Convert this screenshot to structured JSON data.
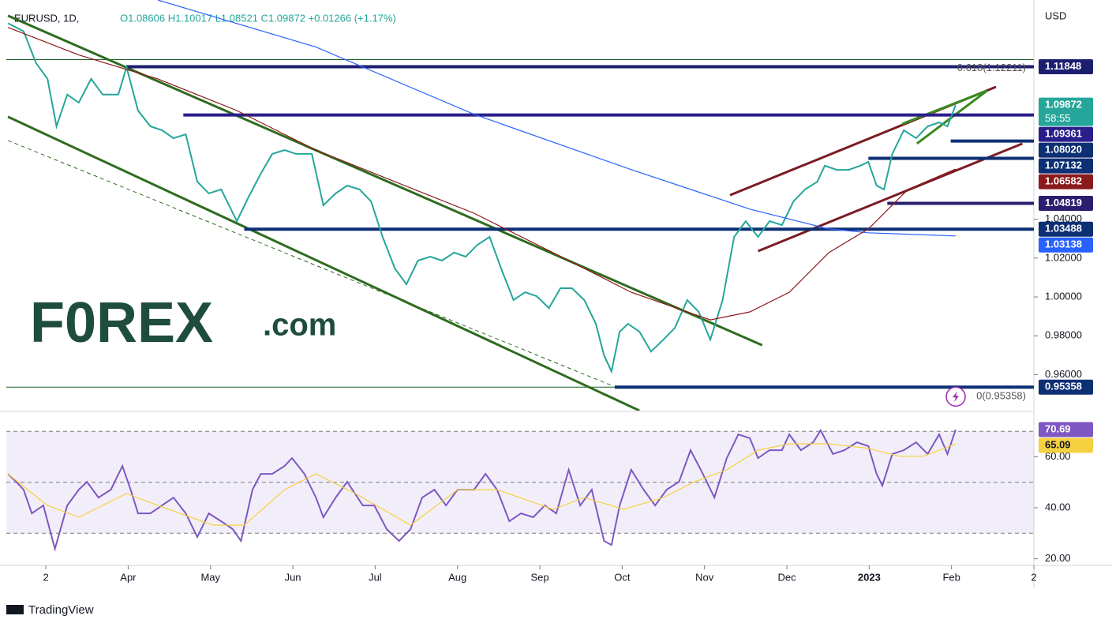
{
  "chart_data": [
    {
      "type": "line",
      "title": "EURUSD, 1D,",
      "subtitle": "O1.08606 H1.10017 L1.08521 C1.09872 +0.01266 (+1.17%)",
      "y_axis_label": "USD",
      "xlim": [
        -0.48,
        12
      ],
      "xticks": [
        {
          "value": 0,
          "label": "2"
        },
        {
          "value": 1,
          "label": "Apr"
        },
        {
          "value": 2,
          "label": "May"
        },
        {
          "value": 3,
          "label": "Jun"
        },
        {
          "value": 4,
          "label": "Jul"
        },
        {
          "value": 5,
          "label": "Aug"
        },
        {
          "value": 6,
          "label": "Sep"
        },
        {
          "value": 7,
          "label": "Oct"
        },
        {
          "value": 8,
          "label": "Nov"
        },
        {
          "value": 9,
          "label": "Dec"
        },
        {
          "value": 10,
          "label": "2023"
        },
        {
          "value": 11,
          "label": "Feb"
        },
        {
          "value": 12,
          "label": "2"
        }
      ],
      "ylim": [
        0.9415,
        1.1528
      ],
      "yticks": [
        {
          "value": 0.96,
          "label": "0.96000"
        },
        {
          "value": 0.98,
          "label": "0.98000"
        },
        {
          "value": 1.0,
          "label": "1.00000"
        },
        {
          "value": 1.02,
          "label": "1.02000"
        },
        {
          "value": 1.04,
          "label": "1.04000"
        }
      ],
      "series": [
        {
          "color": "#26a69a",
          "x": [
            -0.46,
            -0.27,
            -0.12,
            0.02,
            0.13,
            0.26,
            0.4,
            0.55,
            0.69,
            0.88,
            0.98,
            1.12,
            1.27,
            1.41,
            1.55,
            1.7,
            1.84,
            1.98,
            2.13,
            2.32,
            2.46,
            2.61,
            2.75,
            2.9,
            3.04,
            3.23,
            3.37,
            3.52,
            3.66,
            3.81,
            3.95,
            4.09,
            4.24,
            4.38,
            4.52,
            4.67,
            4.81,
            4.96,
            5.1,
            5.24,
            5.39,
            5.53,
            5.68,
            5.82,
            5.96,
            6.11,
            6.25,
            6.39,
            6.54,
            6.68,
            6.78,
            6.87,
            6.97,
            7.07,
            7.21,
            7.35,
            7.5,
            7.64,
            7.79,
            7.93,
            8.07,
            8.22,
            8.36,
            8.5,
            8.65,
            8.79,
            8.94,
            9.08,
            9.22,
            9.37,
            9.46,
            9.61,
            9.75,
            9.89,
            9.99,
            10.09,
            10.18,
            10.28,
            10.42,
            10.57,
            10.71,
            10.85,
            10.95,
            11.05
          ],
          "values": [
            1.1408,
            1.1367,
            1.1204,
            1.1122,
            1.0878,
            1.1041,
            1.1,
            1.1122,
            1.1041,
            1.1041,
            1.1183,
            1.0959,
            1.0878,
            1.0858,
            1.0817,
            1.0837,
            1.0593,
            1.0533,
            1.0553,
            1.039,
            1.0512,
            1.0634,
            1.0736,
            1.0756,
            1.0736,
            1.0736,
            1.0472,
            1.0533,
            1.0573,
            1.0553,
            1.0492,
            1.0309,
            1.0146,
            1.0065,
            1.0187,
            1.0207,
            1.0187,
            1.0228,
            1.0207,
            1.0268,
            1.0309,
            1.0146,
            0.9984,
            1.0024,
            1.0004,
            0.9943,
            1.0045,
            1.0045,
            0.9984,
            0.9862,
            0.9699,
            0.9617,
            0.9821,
            0.9862,
            0.9821,
            0.9719,
            0.978,
            0.9841,
            0.9984,
            0.9923,
            0.978,
            0.9984,
            1.0309,
            1.039,
            1.0309,
            1.039,
            1.037,
            1.0492,
            1.0553,
            1.0593,
            1.0675,
            1.0654,
            1.0654,
            1.0675,
            1.0695,
            1.0573,
            1.0553,
            1.0736,
            1.0858,
            1.0817,
            1.0878,
            1.0898,
            1.0878,
            1.09872
          ]
        },
        {
          "color": "#2962ff",
          "x": [
            1.36,
            3.28,
            5.2,
            7.11,
            8.55,
            9.51,
            9.99,
            11.05
          ],
          "values": [
            1.1528,
            1.1286,
            1.094,
            1.0655,
            1.0452,
            1.035,
            1.033,
            1.0314
          ]
        },
        {
          "color": "#8b1a1a",
          "x": [
            -0.46,
            0.4,
            1.36,
            2.32,
            3.28,
            4.24,
            5.2,
            6.16,
            7.11,
            8.07,
            8.55,
            9.03,
            9.51,
            9.99,
            10.47,
            11.05
          ],
          "values": [
            1.1387,
            1.1245,
            1.1122,
            1.0959,
            1.0756,
            1.0593,
            1.0431,
            1.0228,
            1.0024,
            0.9882,
            0.9923,
            1.0024,
            1.0228,
            1.035,
            1.0553,
            1.0658
          ]
        }
      ],
      "levels": [
        {
          "value": 1.11848,
          "start": 0.98,
          "color": "#1c1f6e",
          "label": "1.11848"
        },
        {
          "value": 1.09361,
          "start": 1.67,
          "color": "#2a1f8a",
          "label": "1.09361"
        },
        {
          "value": 1.0802,
          "start": 10.99,
          "color": "#0d2f73",
          "label": "1.08020"
        },
        {
          "value": 1.07132,
          "start": 9.99,
          "color": "#0d2f73",
          "label": "1.07132"
        },
        {
          "value": 1.04819,
          "start": 10.22,
          "color": "#2a1f6e",
          "label": "1.04819"
        },
        {
          "value": 1.03488,
          "start": 2.41,
          "color": "#0d2f73",
          "label": "1.03488"
        },
        {
          "value": 0.95358,
          "start": 6.91,
          "color": "#0d2f73",
          "label": "0.95358"
        }
      ],
      "price_labels": [
        {
          "value": 1.09872,
          "label": "1.09872",
          "color": "#26a69a",
          "sub": "58:55"
        },
        {
          "value": 1.06582,
          "label": "1.06582",
          "color": "#8b1a1a"
        },
        {
          "value": 1.03138,
          "label": "1.03138",
          "color": "#2962ff"
        }
      ],
      "fib": [
        {
          "value": 1.12211,
          "label": "0.618(1.12211)",
          "color": "#1b5e20"
        },
        {
          "value": 0.95358,
          "label": "0(0.95358)",
          "color": "#1b5e20"
        }
      ],
      "trendlines": [
        {
          "color": "#2e6b1f",
          "x": [
            -0.46,
            8.7
          ],
          "y": [
            1.1447,
            0.9752
          ]
        },
        {
          "color": "#2e6b1f",
          "x": [
            -0.46,
            7.21
          ],
          "y": [
            1.0927,
            0.9415
          ]
        },
        {
          "color": "#2e6b1f",
          "dashed": true,
          "x": [
            -0.46,
            6.87
          ],
          "y": [
            1.0805,
            0.9545
          ]
        },
        {
          "color": "#7b1c25",
          "x": [
            8.31,
            11.54
          ],
          "y": [
            1.0524,
            1.1081
          ]
        },
        {
          "color": "#7b1c25",
          "x": [
            8.65,
            11.86
          ],
          "y": [
            1.0236,
            1.0789
          ]
        },
        {
          "color": "#3a8a1f",
          "x": [
            10.4,
            11.43
          ],
          "y": [
            1.089,
            1.1061
          ]
        },
        {
          "color": "#3a8a1f",
          "x": [
            10.58,
            11.43
          ],
          "y": [
            1.0789,
            1.1061
          ]
        }
      ]
    },
    {
      "type": "line",
      "xlim": [
        -0.48,
        12
      ],
      "ylim": [
        17.7,
        77.5
      ],
      "yticks": [
        {
          "value": 20,
          "label": "20.00"
        },
        {
          "value": 40,
          "label": "40.00"
        },
        {
          "value": 60,
          "label": "60.00"
        }
      ],
      "bands": [
        30,
        50,
        70
      ],
      "series": [
        {
          "color": "#7e57c2",
          "x": [
            -0.46,
            -0.36,
            -0.27,
            -0.17,
            -0.03,
            0.11,
            0.26,
            0.4,
            0.5,
            0.64,
            0.79,
            0.93,
            1.03,
            1.12,
            1.27,
            1.41,
            1.55,
            1.7,
            1.84,
            1.98,
            2.13,
            2.27,
            2.37,
            2.51,
            2.61,
            2.75,
            2.9,
            2.99,
            3.14,
            3.28,
            3.37,
            3.52,
            3.66,
            3.85,
            3.99,
            4.14,
            4.29,
            4.43,
            4.57,
            4.72,
            4.86,
            5.0,
            5.2,
            5.34,
            5.48,
            5.63,
            5.77,
            5.92,
            6.06,
            6.2,
            6.35,
            6.49,
            6.63,
            6.78,
            6.87,
            6.97,
            7.11,
            7.26,
            7.4,
            7.54,
            7.69,
            7.83,
            7.98,
            8.12,
            8.27,
            8.41,
            8.55,
            8.65,
            8.79,
            8.94,
            9.03,
            9.17,
            9.32,
            9.41,
            9.56,
            9.7,
            9.85,
            9.99,
            10.09,
            10.16,
            10.28,
            10.42,
            10.57,
            10.71,
            10.85,
            10.95,
            11.05
          ],
          "values": [
            53.3,
            50.2,
            47.1,
            37.8,
            40.9,
            23.9,
            40.9,
            47.1,
            50.2,
            44.0,
            47.1,
            56.4,
            47.1,
            37.8,
            37.8,
            40.9,
            44.0,
            37.8,
            28.5,
            37.8,
            34.7,
            31.6,
            27.0,
            47.1,
            53.3,
            53.3,
            56.4,
            59.5,
            53.3,
            44.0,
            36.3,
            44.0,
            50.2,
            40.9,
            40.9,
            31.6,
            27.0,
            31.6,
            44.0,
            47.1,
            40.9,
            47.1,
            47.1,
            53.3,
            47.1,
            34.7,
            37.8,
            36.3,
            40.9,
            37.8,
            54.9,
            40.9,
            47.1,
            27.0,
            25.4,
            40.9,
            54.9,
            47.1,
            40.9,
            47.1,
            50.2,
            62.6,
            53.3,
            44.0,
            59.5,
            68.8,
            67.3,
            59.5,
            62.6,
            62.6,
            68.8,
            62.6,
            65.7,
            70.4,
            61.1,
            62.6,
            65.7,
            64.2,
            53.3,
            48.7,
            61.1,
            62.6,
            65.7,
            61.1,
            68.8,
            61.1,
            70.69
          ]
        },
        {
          "color": "#f5d142",
          "x": [
            -0.46,
            0.02,
            0.4,
            0.98,
            1.36,
            2.03,
            2.41,
            2.9,
            3.28,
            3.76,
            4.43,
            5.0,
            5.48,
            6.16,
            6.54,
            7.02,
            7.5,
            7.88,
            8.27,
            8.65,
            9.03,
            9.51,
            9.99,
            10.37,
            10.66,
            11.05
          ],
          "values": [
            53.3,
            40.9,
            36.3,
            45.6,
            40.9,
            33.2,
            33.2,
            47.1,
            53.3,
            45.6,
            33.2,
            47.1,
            47.1,
            39.4,
            44.0,
            39.4,
            44.0,
            50.2,
            54.9,
            62.6,
            65.1,
            65.1,
            63.3,
            60.2,
            60.2,
            65.09
          ]
        }
      ],
      "last_labels": [
        {
          "value": 70.69,
          "label": "70.69",
          "color": "#7e57c2"
        },
        {
          "value": 65.09,
          "label": "65.09",
          "color": "#f5d142"
        }
      ]
    }
  ],
  "logo": {
    "brand": "F0REX",
    "suffix": ".com"
  },
  "footer": "TradingView"
}
